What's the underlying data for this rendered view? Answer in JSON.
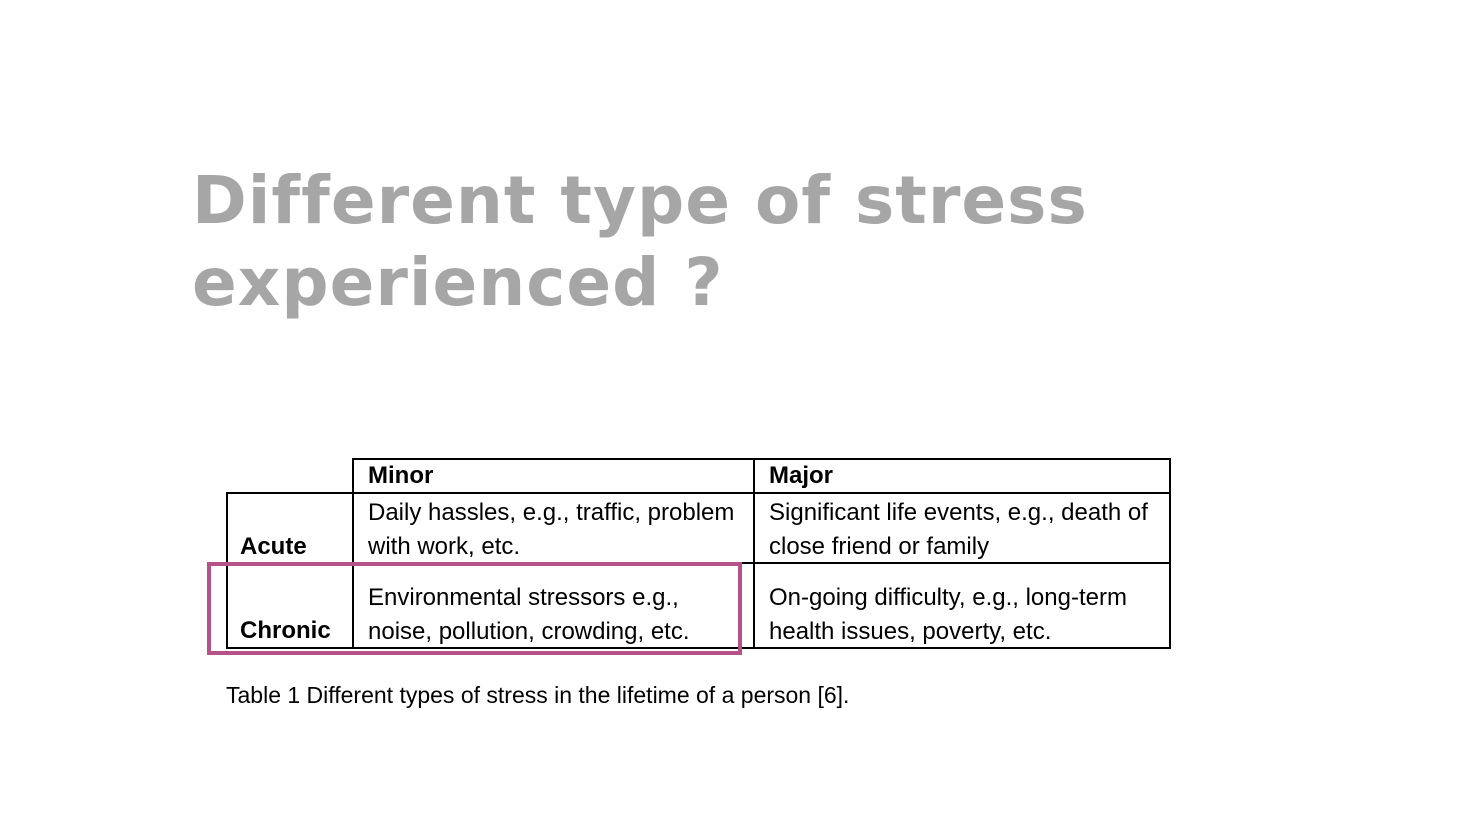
{
  "slide": {
    "title_line1": "Different type of stress",
    "title_line2": "experienced ?"
  },
  "table": {
    "header": {
      "minor": "Minor",
      "major": "Major"
    },
    "rows": [
      {
        "label": "Acute",
        "minor_line1": "Daily hassles, e.g., traffic, problem",
        "minor_line2": "with work, etc.",
        "major_line1": "Significant life events, e.g., death of",
        "major_line2": "close friend or family"
      },
      {
        "label": "Chronic",
        "minor_line1": "Environmental stressors e.g.,",
        "minor_line2": "noise, pollution, crowding, etc.",
        "major_line1": "On-going difficulty, e.g., long-term",
        "major_line2": "health issues, poverty, etc."
      }
    ],
    "caption": "Table 1  Different types of stress in the lifetime of a person [6]."
  },
  "colors": {
    "title": "#a6a6a6",
    "highlight": "#b5528a"
  }
}
